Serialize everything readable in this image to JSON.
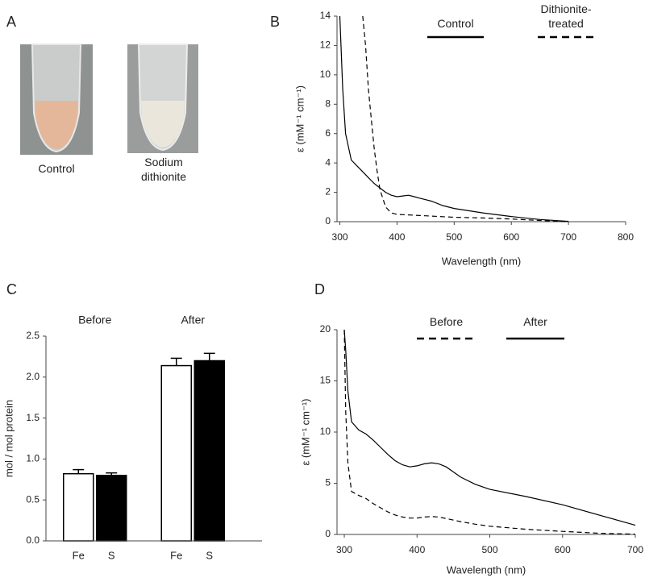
{
  "photos": {
    "panel_label": "A",
    "items": [
      {
        "label": "Control"
      },
      {
        "label": "Sodium dithionite"
      }
    ]
  },
  "chart_data": [
    {
      "type": "line",
      "panel_label": "B",
      "xlabel": "Wavelength (nm)",
      "ylabel": "ε (mM⁻¹ cm⁻¹)",
      "xlim": [
        295,
        800
      ],
      "xticks": [
        300,
        400,
        500,
        600,
        700,
        800
      ],
      "ylim": [
        0,
        14
      ],
      "yticks": [
        0,
        2,
        4,
        6,
        8,
        10,
        12,
        14
      ],
      "x": [
        300,
        305,
        310,
        320,
        330,
        340,
        345,
        350,
        355,
        360,
        365,
        370,
        380,
        390,
        400,
        410,
        420,
        430,
        440,
        450,
        460,
        480,
        500,
        550,
        600,
        650,
        700
      ],
      "series": [
        {
          "name": "Control",
          "color": "#000000",
          "line_style": "solid",
          "values": [
            14,
            9,
            6,
            4.2,
            3.8,
            3.4,
            3.2,
            3.0,
            2.8,
            2.6,
            2.45,
            2.3,
            2.0,
            1.8,
            1.7,
            1.75,
            1.8,
            1.7,
            1.6,
            1.5,
            1.4,
            1.1,
            0.9,
            0.6,
            0.35,
            0.15,
            0.02
          ]
        },
        {
          "name": "Dithionite-treated",
          "color": "#000000",
          "line_style": "dashed",
          "values": [
            null,
            null,
            null,
            null,
            null,
            14,
            12,
            9,
            7,
            5,
            3.5,
            2.2,
            1.0,
            0.6,
            0.5,
            0.48,
            0.46,
            0.44,
            0.42,
            0.4,
            0.38,
            0.34,
            0.3,
            0.25,
            0.18,
            0.08,
            0
          ]
        }
      ]
    },
    {
      "type": "bar",
      "panel_label": "C",
      "ylabel": "mol / mol protein",
      "group_labels": [
        "Before",
        "After"
      ],
      "ylim": [
        0,
        2.5
      ],
      "yticks": [
        {
          "value": 0,
          "label": "0.0"
        },
        0.5,
        {
          "value": 1,
          "label": "1.0"
        },
        1.5,
        {
          "value": 2,
          "label": "2.0"
        },
        2.5
      ],
      "series": [
        {
          "name": "Fe",
          "color": "#ffffff",
          "values": [
            0.82,
            2.14
          ],
          "errors": [
            0.05,
            0.09
          ]
        },
        {
          "name": "S",
          "color": "#000000",
          "values": [
            0.8,
            2.2
          ],
          "errors": [
            0.03,
            0.09
          ]
        }
      ]
    },
    {
      "type": "line",
      "panel_label": "D",
      "xlabel": "Wavelength (nm)",
      "ylabel": "ε (mM⁻¹ cm⁻¹)",
      "xlim": [
        290,
        700
      ],
      "xticks": [
        300,
        400,
        500,
        600,
        700
      ],
      "ylim": [
        0,
        20
      ],
      "yticks": [
        0,
        5,
        10,
        15,
        20
      ],
      "x": [
        300,
        302,
        305,
        310,
        320,
        330,
        340,
        350,
        360,
        370,
        380,
        390,
        400,
        410,
        420,
        430,
        440,
        450,
        460,
        480,
        500,
        550,
        600,
        650,
        700
      ],
      "series": [
        {
          "name": "Before",
          "color": "#000000",
          "line_style": "dashed",
          "values": [
            20,
            12,
            7,
            4.2,
            3.8,
            3.5,
            3.0,
            2.6,
            2.2,
            1.9,
            1.7,
            1.6,
            1.6,
            1.7,
            1.75,
            1.7,
            1.55,
            1.4,
            1.25,
            1.0,
            0.8,
            0.5,
            0.3,
            0.12,
            0.02
          ]
        },
        {
          "name": "After",
          "color": "#000000",
          "line_style": "solid",
          "values": [
            20,
            18,
            14,
            11,
            10.2,
            9.8,
            9.2,
            8.5,
            7.8,
            7.2,
            6.8,
            6.6,
            6.7,
            6.9,
            7.0,
            6.9,
            6.6,
            6.1,
            5.6,
            4.9,
            4.4,
            3.7,
            2.9,
            1.9,
            0.9
          ]
        }
      ]
    }
  ]
}
